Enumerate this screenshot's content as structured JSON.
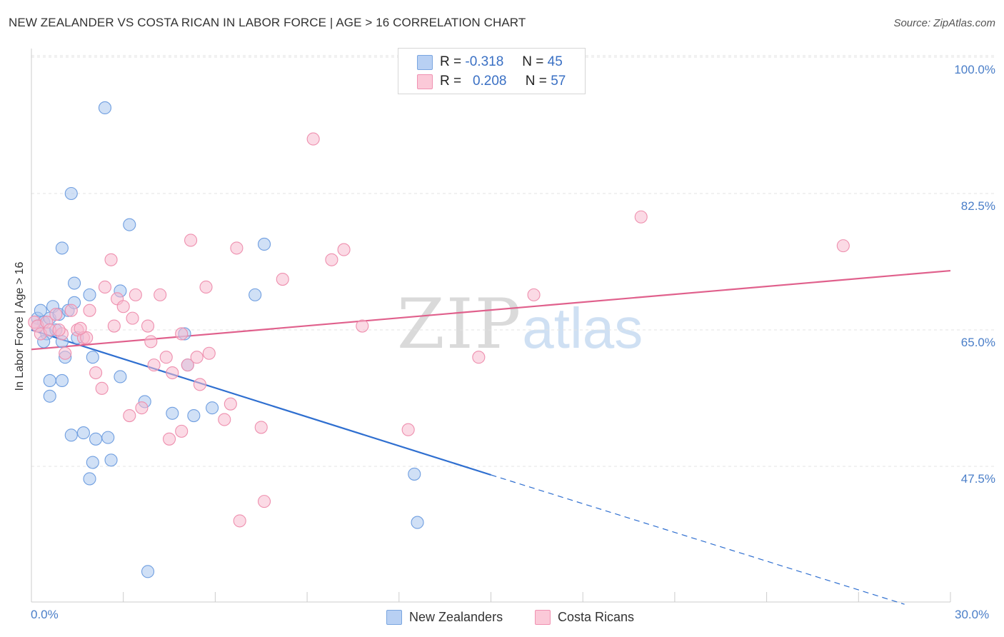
{
  "title": "NEW ZEALANDER VS COSTA RICAN IN LABOR FORCE | AGE > 16 CORRELATION CHART",
  "source": "Source: ZipAtlas.com",
  "watermark": {
    "zip": "ZIP",
    "atlas": "atlas"
  },
  "stats": {
    "blue": {
      "r_label": "R =",
      "r_value": "-0.318",
      "n_label": "N =",
      "n_value": "45"
    },
    "pink": {
      "r_label": "R =",
      "r_value": "0.208",
      "n_label": "N =",
      "n_value": "57"
    }
  },
  "legend": {
    "blue": "New Zealanders",
    "pink": "Costa Ricans"
  },
  "colors": {
    "blue_fill": "#a9c6ef",
    "blue_stroke": "#6f9ee0",
    "blue_line": "#2f6fd0",
    "pink_fill": "#f8bcd0",
    "pink_stroke": "#ee8fae",
    "pink_line": "#e0608c",
    "grid": "#e3e3e3",
    "tick_text": "#4a7ec8"
  },
  "chart_data": {
    "type": "scatter",
    "title": "NEW ZEALANDER VS COSTA RICAN IN LABOR FORCE | AGE > 16 CORRELATION CHART",
    "xlabel": "",
    "ylabel": "In Labor Force | Age > 16",
    "xlim": [
      0,
      30
    ],
    "ylim": [
      31.5,
      102
    ],
    "x_tick_labels": [
      "0.0%",
      "30.0%"
    ],
    "y_ticks": [
      47.5,
      65.0,
      82.5,
      100.0
    ],
    "y_tick_labels": [
      "47.5%",
      "65.0%",
      "82.5%",
      "100.0%"
    ],
    "grid": true,
    "series": [
      {
        "name": "New Zealanders",
        "color": "blue",
        "points": [
          [
            0.2,
            66.5
          ],
          [
            0.3,
            67.5
          ],
          [
            0.4,
            66
          ],
          [
            0.5,
            64.5
          ],
          [
            0.6,
            66.5
          ],
          [
            0.7,
            68
          ],
          [
            0.2,
            65.5
          ],
          [
            0.8,
            65
          ],
          [
            0.9,
            67
          ],
          [
            1.0,
            63.5
          ],
          [
            1.1,
            61.5
          ],
          [
            1.2,
            67.5
          ],
          [
            1.3,
            82.5
          ],
          [
            1.4,
            71
          ],
          [
            1.4,
            68.5
          ],
          [
            1.0,
            75.5
          ],
          [
            1.5,
            64
          ],
          [
            1.9,
            69.5
          ],
          [
            2.0,
            61.5
          ],
          [
            2.4,
            93.5
          ],
          [
            0.6,
            58.5
          ],
          [
            1.0,
            58.5
          ],
          [
            0.6,
            56.5
          ],
          [
            1.3,
            51.5
          ],
          [
            1.7,
            51.8
          ],
          [
            2.1,
            51
          ],
          [
            2.5,
            51.2
          ],
          [
            2.6,
            48.3
          ],
          [
            2.0,
            48
          ],
          [
            1.9,
            45.9
          ],
          [
            2.9,
            70
          ],
          [
            3.2,
            78.5
          ],
          [
            2.9,
            59
          ],
          [
            3.7,
            55.8
          ],
          [
            4.6,
            54.3
          ],
          [
            5.1,
            60.5
          ],
          [
            5.0,
            64.5
          ],
          [
            5.3,
            54
          ],
          [
            5.9,
            55
          ],
          [
            7.3,
            69.5
          ],
          [
            7.6,
            76
          ],
          [
            12.5,
            46.5
          ],
          [
            12.6,
            40.3
          ],
          [
            3.8,
            34
          ],
          [
            0.4,
            63.5
          ]
        ]
      },
      {
        "name": "Costa Ricans",
        "color": "pink",
        "points": [
          [
            0.1,
            66
          ],
          [
            0.2,
            65.5
          ],
          [
            0.3,
            64.5
          ],
          [
            0.5,
            66
          ],
          [
            0.6,
            65
          ],
          [
            0.8,
            67
          ],
          [
            1.0,
            64.5
          ],
          [
            1.1,
            62
          ],
          [
            1.3,
            67.5
          ],
          [
            1.5,
            65
          ],
          [
            1.7,
            64
          ],
          [
            1.9,
            67.5
          ],
          [
            1.8,
            64
          ],
          [
            2.1,
            59.5
          ],
          [
            2.3,
            57.5
          ],
          [
            2.4,
            70.5
          ],
          [
            2.6,
            74
          ],
          [
            2.7,
            65.5
          ],
          [
            2.8,
            69
          ],
          [
            3.0,
            68
          ],
          [
            3.2,
            54
          ],
          [
            3.3,
            66.5
          ],
          [
            3.4,
            69.5
          ],
          [
            3.6,
            55
          ],
          [
            3.8,
            65.5
          ],
          [
            3.9,
            63.5
          ],
          [
            4.0,
            60.5
          ],
          [
            4.2,
            69.5
          ],
          [
            4.4,
            61.5
          ],
          [
            4.5,
            51
          ],
          [
            4.6,
            59.5
          ],
          [
            4.9,
            52
          ],
          [
            5.1,
            60.5
          ],
          [
            5.2,
            76.5
          ],
          [
            5.4,
            61.5
          ],
          [
            5.5,
            58
          ],
          [
            5.7,
            70.5
          ],
          [
            5.8,
            62
          ],
          [
            6.3,
            53.5
          ],
          [
            6.5,
            55.5
          ],
          [
            6.7,
            75.5
          ],
          [
            6.8,
            40.5
          ],
          [
            7.5,
            52.5
          ],
          [
            7.6,
            43
          ],
          [
            8.2,
            71.5
          ],
          [
            9.2,
            89.5
          ],
          [
            9.8,
            74
          ],
          [
            10.2,
            75.3
          ],
          [
            10.8,
            65.5
          ],
          [
            12.3,
            52.2
          ],
          [
            14.6,
            61.5
          ],
          [
            16.4,
            69.5
          ],
          [
            19.9,
            79.5
          ],
          [
            26.5,
            75.8
          ],
          [
            0.9,
            65
          ],
          [
            1.6,
            65.2
          ],
          [
            4.9,
            64.5
          ]
        ]
      }
    ],
    "trend_lines": [
      {
        "series": "New Zealanders",
        "solid": [
          [
            0.0,
            65.0
          ],
          [
            15.0,
            46.4
          ]
        ],
        "dashed": [
          [
            15.0,
            46.4
          ],
          [
            28.5,
            29.8
          ]
        ]
      },
      {
        "series": "Costa Ricans",
        "solid": [
          [
            0.0,
            62.5
          ],
          [
            30.0,
            72.6
          ]
        ]
      }
    ]
  }
}
